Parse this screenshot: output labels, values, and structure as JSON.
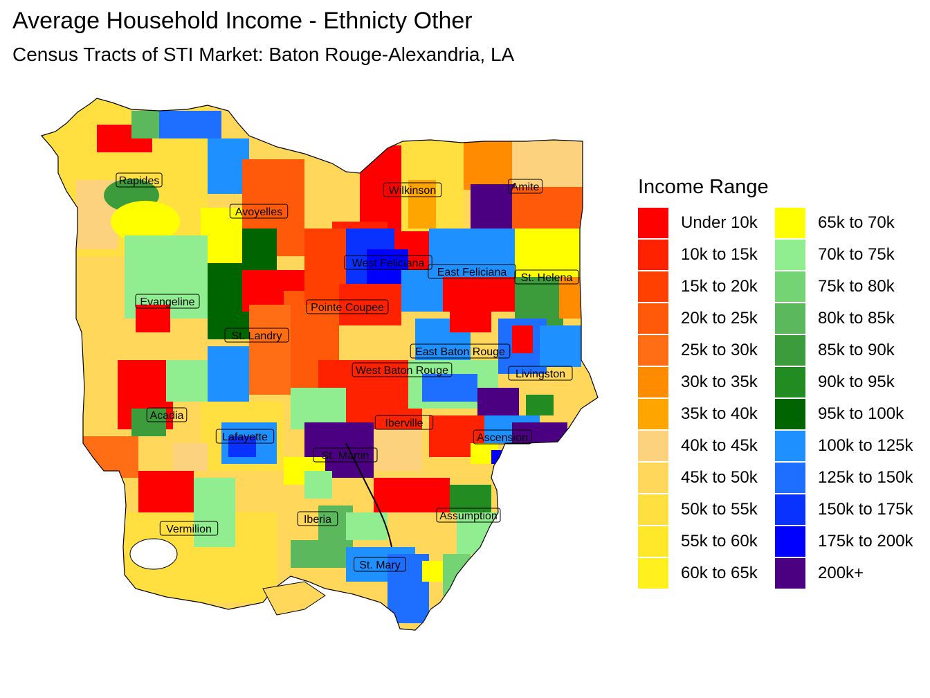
{
  "title": "Average Household Income - Ethnicty Other",
  "subtitle": "Census Tracts of STI Market: Baton Rouge-Alexandria, LA",
  "legend": {
    "title": "Income Range",
    "items": [
      {
        "label": "Under 10k",
        "color": "#ff0000"
      },
      {
        "label": "10k to 15k",
        "color": "#ff2200"
      },
      {
        "label": "15k to 20k",
        "color": "#ff4000"
      },
      {
        "label": "20k to 25k",
        "color": "#ff5a0a"
      },
      {
        "label": "25k to 30k",
        "color": "#ff6e14"
      },
      {
        "label": "30k to 35k",
        "color": "#ff8c00"
      },
      {
        "label": "35k to 40k",
        "color": "#ffa500"
      },
      {
        "label": "40k to 45k",
        "color": "#fcd27e"
      },
      {
        "label": "45k to 50k",
        "color": "#ffd75a"
      },
      {
        "label": "50k to 55k",
        "color": "#ffe040"
      },
      {
        "label": "55k to 60k",
        "color": "#ffe82a"
      },
      {
        "label": "60k to 65k",
        "color": "#fff01e"
      },
      {
        "label": "65k to 70k",
        "color": "#ffff00"
      },
      {
        "label": "70k to 75k",
        "color": "#90ee90"
      },
      {
        "label": "75k to 80k",
        "color": "#74d474"
      },
      {
        "label": "80k to 85k",
        "color": "#5cb85c"
      },
      {
        "label": "85k to 90k",
        "color": "#3c9c3c"
      },
      {
        "label": "90k to 95k",
        "color": "#228b22"
      },
      {
        "label": "95k to 100k",
        "color": "#006400"
      },
      {
        "label": "100k to 125k",
        "color": "#1e90ff"
      },
      {
        "label": "125k to 150k",
        "color": "#1e6eff"
      },
      {
        "label": "150k to 175k",
        "color": "#0a32ff"
      },
      {
        "label": "175k to 200k",
        "color": "#0000ff"
      },
      {
        "label": "200k+",
        "color": "#4b0082"
      }
    ]
  },
  "parishes": [
    {
      "name": "Rapides"
    },
    {
      "name": "Avoyelles"
    },
    {
      "name": "Wilkinson"
    },
    {
      "name": "Amite"
    },
    {
      "name": "West Feliciana"
    },
    {
      "name": "East Feliciana"
    },
    {
      "name": "St. Helena"
    },
    {
      "name": "Evangeline"
    },
    {
      "name": "Pointe Coupee"
    },
    {
      "name": "St. Landry"
    },
    {
      "name": "East Baton Rouge"
    },
    {
      "name": "West Baton Rouge"
    },
    {
      "name": "Livingston"
    },
    {
      "name": "Acadia"
    },
    {
      "name": "Lafayette"
    },
    {
      "name": "Iberville"
    },
    {
      "name": "Ascension"
    },
    {
      "name": "St. Martin"
    },
    {
      "name": "Iberia"
    },
    {
      "name": "Assumption"
    },
    {
      "name": "Vermilion"
    },
    {
      "name": "St. Mary"
    }
  ]
}
